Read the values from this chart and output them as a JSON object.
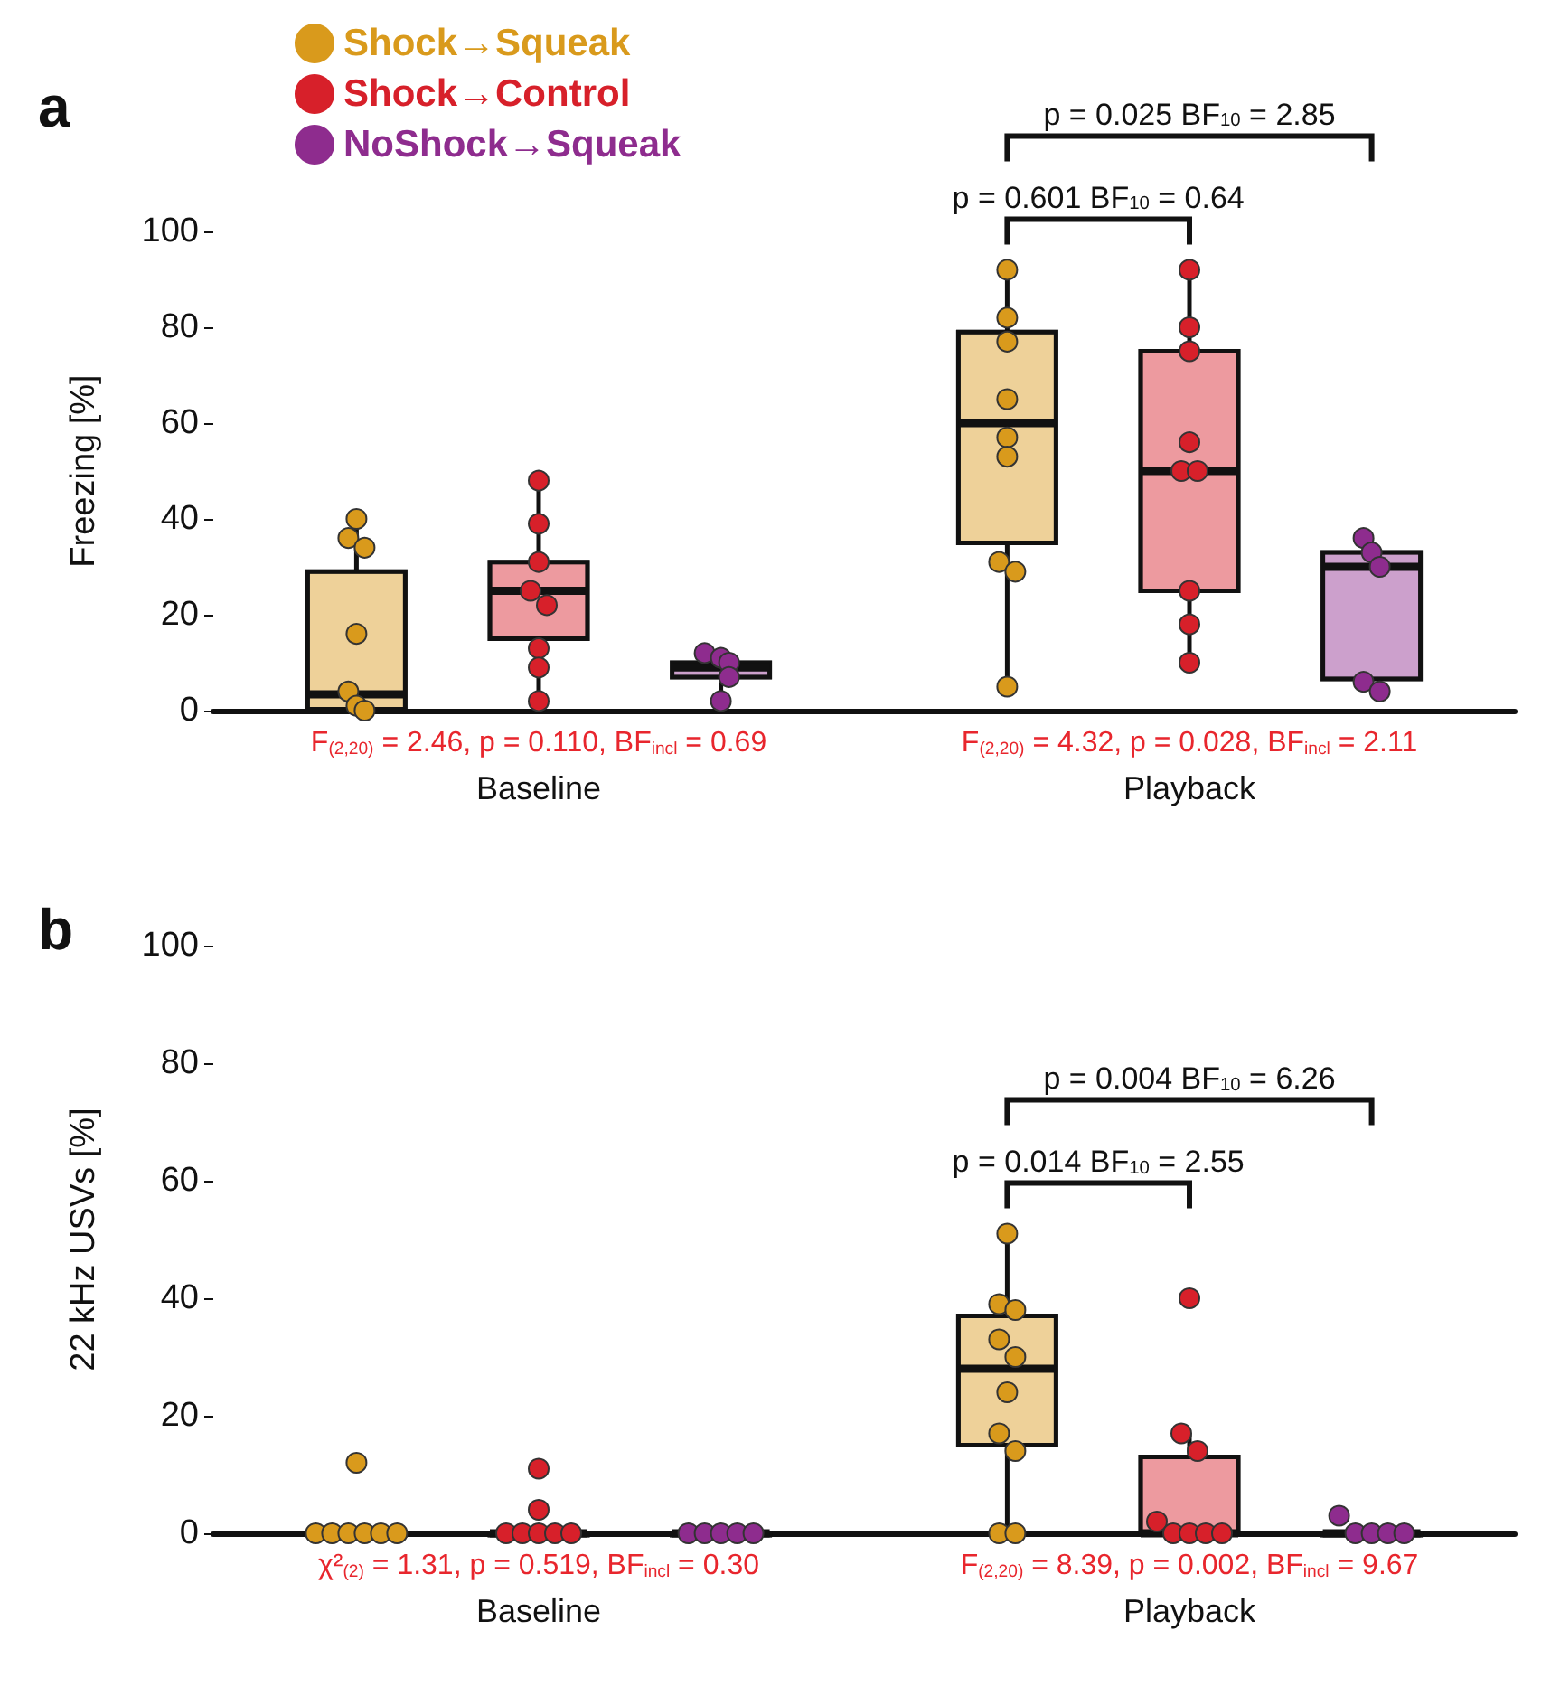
{
  "chart_data": [
    {
      "type": "box",
      "title": "a",
      "ylabel": "Freezing [%]",
      "categories": [
        "Baseline",
        "Playback"
      ],
      "ylim": [
        0,
        100
      ],
      "yticks": [
        0,
        20,
        40,
        60,
        80,
        100
      ],
      "legend": "top left",
      "series": [
        {
          "name": "Shock→Squeak",
          "color": "#d99a1c",
          "boxes": [
            {
              "low": 0,
              "q1": 0.3,
              "median": 3.4,
              "q3": 29,
              "high": 40
            },
            {
              "low": 5,
              "q1": 35,
              "median": 60,
              "q3": 79,
              "high": 92
            }
          ]
        },
        {
          "name": "Shock→Control",
          "color": "#d7202a",
          "boxes": [
            {
              "low": 2,
              "q1": 15,
              "median": 25,
              "q3": 31,
              "high": 49
            },
            {
              "low": 10,
              "q1": 25,
              "median": 50,
              "q3": 75,
              "high": 92
            }
          ]
        },
        {
          "name": "NoShock→Squeak",
          "color": "#8e2c8e",
          "boxes": [
            {
              "low": 2,
              "q1": 7,
              "median": 9,
              "q3": 10,
              "high": 12
            },
            {
              "low": 4,
              "q1": 6.6,
              "median": 30,
              "q3": 33,
              "high": 36
            }
          ]
        },
        {
          "type": "scatter",
          "color": "#d99a1c",
          "x": [
            "Baseline",
            "Baseline",
            "Baseline",
            "Baseline",
            "Baseline",
            "Baseline",
            "Baseline",
            "Playback",
            "Playback",
            "Playback",
            "Playback",
            "Playback",
            "Playback",
            "Playback",
            "Playback",
            "Playback"
          ],
          "values": [
            40,
            36,
            34,
            16,
            4,
            1,
            0,
            92,
            82,
            77,
            65,
            57,
            53,
            31,
            29,
            5
          ]
        },
        {
          "type": "scatter",
          "color": "#d7202a",
          "x": [
            "Baseline",
            "Baseline",
            "Baseline",
            "Baseline",
            "Baseline",
            "Baseline",
            "Baseline",
            "Baseline",
            "Playback",
            "Playback",
            "Playback",
            "Playback",
            "Playback",
            "Playback",
            "Playback",
            "Playback",
            "Playback"
          ],
          "values": [
            48,
            39,
            31,
            25,
            22,
            13,
            9,
            2,
            92,
            80,
            75,
            56,
            50,
            50,
            25,
            18,
            10
          ]
        },
        {
          "type": "scatter",
          "color": "#8e2c8e",
          "x": [
            "Baseline",
            "Baseline",
            "Baseline",
            "Baseline",
            "Baseline",
            "Playback",
            "Playback",
            "Playback",
            "Playback",
            "Playback"
          ],
          "values": [
            12,
            11,
            10,
            7,
            2,
            36,
            33,
            30,
            6,
            4
          ]
        }
      ],
      "annotations": [
        "F$_{(2,20)}$ = 2.46, p = 0.110, BF$_{incl}$ = 0.69",
        "F$_{(2,20)}$ = 4.32, p = 0.028, BF$_{incl}$ = 2.11",
        "p = 0.601 BF$_{10}$ = 0.64",
        "p = 0.025 BF$_{10}$ = 2.85"
      ]
    },
    {
      "type": "box",
      "title": "b",
      "ylabel": "22 kHz USVs [%]",
      "categories": [
        "Baseline",
        "Playback"
      ],
      "ylim": [
        0,
        100
      ],
      "yticks": [
        0,
        20,
        40,
        60,
        80,
        100
      ],
      "series": [
        {
          "color": "#d99a1c",
          "boxes": [
            {
              "low": 0,
              "q1": 0,
              "median": 0,
              "q3": 0,
              "high": 0
            },
            {
              "low": 0.5,
              "q1": 15,
              "median": 28,
              "q3": 37,
              "high": 51
            }
          ]
        },
        {
          "color": "#d7202a",
          "boxes": [
            {
              "low": 0,
              "q1": 0,
              "median": 0,
              "q3": 0,
              "high": 0
            },
            {
              "low": 0,
              "q1": 0,
              "median": 0,
              "q3": 13,
              "high": 17
            }
          ]
        },
        {
          "color": "#8e2c8e",
          "boxes": [
            {
              "low": 0,
              "q1": 0,
              "median": 0,
              "q3": 0,
              "high": 0
            },
            {
              "low": 0,
              "q1": 0,
              "median": 0,
              "q3": 0,
              "high": 0
            }
          ]
        },
        {
          "type": "scatter",
          "color": "#d99a1c",
          "x": [
            "Baseline",
            "Baseline",
            "Baseline",
            "Baseline",
            "Baseline",
            "Baseline",
            "Baseline",
            "Playback",
            "Playback",
            "Playback",
            "Playback",
            "Playback",
            "Playback",
            "Playback",
            "Playback",
            "Playback",
            "Playback"
          ],
          "values": [
            12,
            0,
            0,
            0,
            0,
            0,
            0,
            51,
            39,
            38,
            33,
            30,
            24,
            17,
            14,
            0,
            0
          ]
        },
        {
          "type": "scatter",
          "color": "#d7202a",
          "x": [
            "Baseline",
            "Baseline",
            "Baseline",
            "Baseline",
            "Baseline",
            "Baseline",
            "Baseline",
            "Playback",
            "Playback",
            "Playback",
            "Playback",
            "Playback",
            "Playback",
            "Playback",
            "Playback"
          ],
          "values": [
            11,
            4,
            0,
            0,
            0,
            0,
            0,
            40,
            17,
            14,
            2,
            0,
            0,
            0,
            0
          ]
        },
        {
          "type": "scatter",
          "color": "#8e2c8e",
          "x": [
            "Baseline",
            "Baseline",
            "Baseline",
            "Baseline",
            "Baseline",
            "Playback",
            "Playback",
            "Playback",
            "Playback",
            "Playback"
          ],
          "values": [
            0,
            0,
            0,
            0,
            0,
            3,
            0,
            0,
            0,
            0
          ]
        }
      ],
      "annotations": [
        "χ²$_{(2)}$ = 1.31, p = 0.519, BF$_{incl}$ = 0.30",
        "F$_{(2,20)}$ = 8.39, p = 0.002, BF$_{incl}$ = 9.67",
        "p = 0.014 BF$_{10}$ = 2.55",
        "p = 0.004 BF$_{10}$ = 6.26"
      ]
    }
  ]
}
